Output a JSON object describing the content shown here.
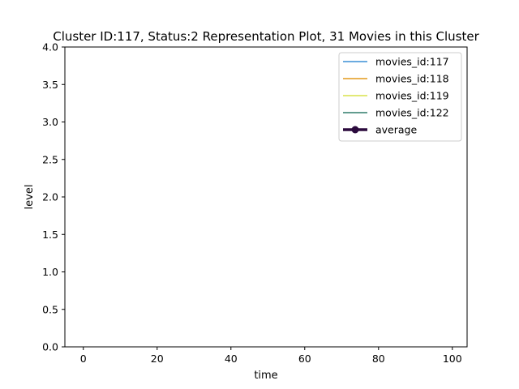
{
  "chart_data": {
    "type": "line",
    "title": "Cluster ID:117, Status:2 Representation Plot, 31 Movies in this Cluster",
    "xlabel": "time",
    "ylabel": "level",
    "xlim": [
      -5,
      104
    ],
    "ylim": [
      0,
      4.0
    ],
    "xticks": [
      0,
      20,
      40,
      60,
      80,
      100
    ],
    "yticks": [
      "0.0",
      "0.5",
      "1.0",
      "1.5",
      "2.0",
      "2.5",
      "3.0",
      "3.5",
      "4.0"
    ],
    "grid": false,
    "legend_position": "top-right",
    "series": [
      {
        "name": "movies_id:117",
        "color": "#3a8fd6",
        "style": "line",
        "x": [],
        "y": []
      },
      {
        "name": "movies_id:118",
        "color": "#e39a1a",
        "style": "line",
        "x": [],
        "y": []
      },
      {
        "name": "movies_id:119",
        "color": "#d9e24a",
        "style": "line",
        "x": [],
        "y": []
      },
      {
        "name": "movies_id:122",
        "color": "#2e7b6a",
        "style": "line",
        "x": [],
        "y": []
      },
      {
        "name": "average",
        "color": "#2b0a3d",
        "style": "line-marker",
        "x": [],
        "y": []
      }
    ]
  }
}
